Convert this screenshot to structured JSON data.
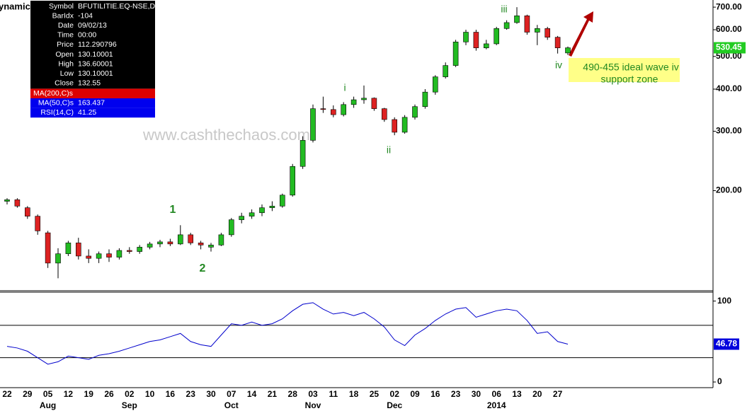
{
  "chart_data": [
    {
      "type": "candlestick",
      "title": "ynamic",
      "categories": [
        "22",
        null,
        "29",
        null,
        "05",
        null,
        "12",
        null,
        "19",
        null,
        "26",
        null,
        "02",
        null,
        "10",
        null,
        "16",
        null,
        "23",
        null,
        "30",
        null,
        "07",
        null,
        "14",
        null,
        "21",
        null,
        "28",
        null,
        "03",
        null,
        "11",
        null,
        "18",
        null,
        "25",
        null,
        "02",
        null,
        "09",
        null,
        "16",
        null,
        "23",
        null,
        "30",
        null,
        "06",
        null,
        "13",
        null,
        "20",
        null,
        "27",
        null
      ],
      "months": [
        "Aug",
        "Sep",
        "Oct",
        "Nov",
        "Dec",
        "2014"
      ],
      "open": [
        186,
        188,
        178,
        168,
        150,
        122,
        130,
        140,
        128,
        126,
        130,
        127,
        133,
        132,
        136,
        139,
        141,
        139,
        148,
        140,
        136,
        138,
        148,
        164,
        168,
        172,
        178,
        180,
        194,
        236,
        282,
        350,
        348,
        336,
        360,
        372,
        376,
        350,
        325,
        298,
        330,
        355,
        392,
        435,
        470,
        552,
        590,
        530,
        545,
        605,
        630,
        660,
        590,
        605,
        570,
        512
      ],
      "high": [
        190,
        190,
        180,
        170,
        152,
        135,
        142,
        145,
        134,
        132,
        134,
        135,
        136,
        138,
        141,
        143,
        144,
        158,
        150,
        142,
        140,
        150,
        166,
        172,
        176,
        182,
        186,
        196,
        240,
        290,
        360,
        380,
        358,
        366,
        380,
        410,
        378,
        352,
        330,
        335,
        360,
        400,
        440,
        480,
        560,
        600,
        600,
        560,
        612,
        640,
        700,
        665,
        620,
        612,
        575,
        535
      ],
      "low": [
        182,
        178,
        165,
        148,
        118,
        110,
        128,
        125,
        122,
        122,
        123,
        125,
        130,
        130,
        134,
        136,
        137,
        138,
        138,
        134,
        132,
        137,
        146,
        160,
        165,
        168,
        174,
        178,
        192,
        232,
        278,
        340,
        330,
        332,
        352,
        362,
        345,
        320,
        292,
        295,
        325,
        350,
        385,
        430,
        465,
        540,
        520,
        525,
        540,
        600,
        625,
        580,
        540,
        560,
        510,
        505
      ],
      "close": [
        188,
        180,
        168,
        152,
        122,
        130,
        140,
        128,
        126,
        130,
        127,
        133,
        132,
        136,
        139,
        141,
        139,
        148,
        140,
        138,
        138,
        148,
        164,
        168,
        172,
        178,
        180,
        194,
        236,
        282,
        350,
        348,
        336,
        360,
        372,
        376,
        350,
        325,
        298,
        330,
        355,
        392,
        435,
        470,
        552,
        590,
        530,
        545,
        605,
        630,
        660,
        590,
        605,
        570,
        530,
        530.45
      ],
      "up_color": "#22bb22",
      "down_color": "#dd2222",
      "log_scale": true,
      "ylim": [
        101,
        735
      ],
      "yticks": [
        {
          "value": 700,
          "label": "700.00"
        },
        {
          "value": 600,
          "label": "600.00"
        },
        {
          "value": 500,
          "label": "500.00"
        },
        {
          "value": 400,
          "label": "400.00"
        },
        {
          "value": 300,
          "label": "300.00"
        },
        {
          "value": 200,
          "label": "200.00"
        }
      ],
      "last_price": {
        "value": 530.45,
        "label": "530.45"
      },
      "watermark": "www.cashthechaos.com",
      "wave_labels": [
        "1",
        "2",
        "i",
        "ii",
        "iii",
        "iv"
      ],
      "callout": [
        "490-455 ideal wave iv",
        "support zone"
      ],
      "info_panel": [
        [
          "Symbol",
          "BFUTILITIE.EQ-NSE,D"
        ],
        [
          "BarIdx",
          "-104"
        ],
        [
          "Date",
          "09/02/13"
        ],
        [
          "Time",
          "00:00"
        ],
        [
          "Price",
          "112.290796"
        ],
        [
          "Open",
          "130.10001"
        ],
        [
          "High",
          "136.60001"
        ],
        [
          "Low",
          "130.10001"
        ],
        [
          "Close",
          "132.55"
        ]
      ],
      "indicators": [
        {
          "name": "MA(200,C)s",
          "value": "",
          "color": "#dd0000"
        },
        {
          "name": "MA(50,C)s",
          "value": "163.437",
          "color": "#0000ee"
        },
        {
          "name": "RSI(14,C)",
          "value": "41.25",
          "color": "#0000ee"
        }
      ]
    },
    {
      "type": "line",
      "name": "RSI",
      "color": "#0000cc",
      "values": [
        44,
        42,
        38,
        30,
        22,
        25,
        32,
        30,
        28,
        33,
        35,
        38,
        42,
        46,
        50,
        52,
        56,
        60,
        50,
        46,
        44,
        58,
        72,
        70,
        74,
        70,
        72,
        78,
        88,
        96,
        98,
        90,
        84,
        86,
        82,
        86,
        78,
        68,
        52,
        45,
        58,
        66,
        76,
        84,
        90,
        92,
        80,
        84,
        88,
        90,
        88,
        76,
        60,
        62,
        50,
        46.78
      ],
      "ylim": [
        -7,
        111
      ],
      "yticks": [
        0,
        100
      ],
      "levels": [
        70,
        30
      ],
      "last_value": {
        "value": 46.78,
        "label": "46.78"
      }
    }
  ]
}
